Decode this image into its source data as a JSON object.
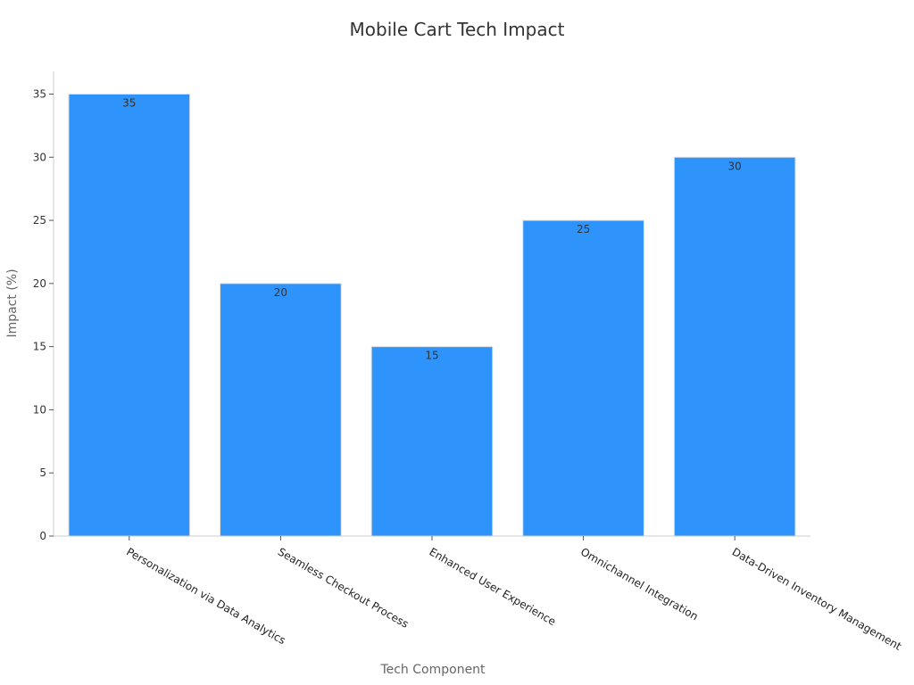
{
  "chart_data": {
    "type": "bar",
    "title": "Mobile Cart Tech Impact",
    "xlabel": "Tech Component",
    "ylabel": "Impact (%)",
    "categories": [
      "Personalization via Data Analytics",
      "Seamless Checkout Process",
      "Enhanced User Experience",
      "Omnichannel Integration",
      "Data-Driven Inventory Management"
    ],
    "values": [
      35,
      20,
      15,
      25,
      30
    ],
    "data_labels": [
      "35",
      "20",
      "15",
      "25",
      "30"
    ],
    "ylim": [
      0,
      36.8
    ],
    "yticks": [
      0,
      5,
      10,
      15,
      20,
      25,
      30,
      35
    ],
    "ytick_labels": [
      "0",
      "5",
      "10",
      "15",
      "20",
      "25",
      "30",
      "35"
    ],
    "grid": false,
    "legend": "none",
    "colors": {
      "bar": "#2e93fa",
      "bar_edge": "#e0e0e0",
      "axis": "#cccccc"
    }
  }
}
